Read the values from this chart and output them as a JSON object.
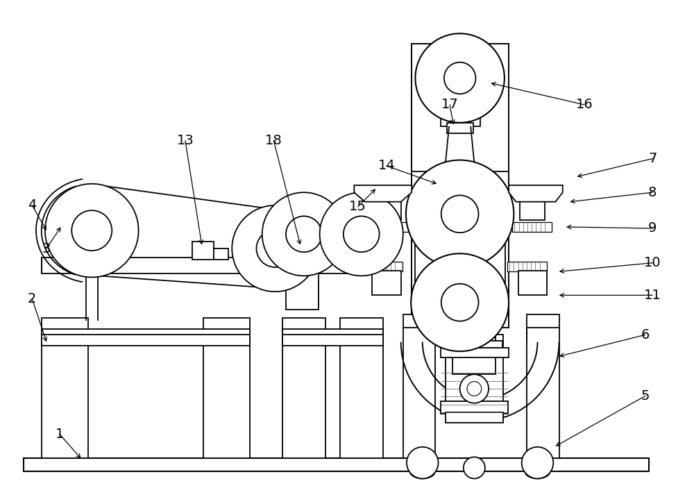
{
  "bg_color": "#ffffff",
  "line_color": "#000000",
  "lw": 1.3,
  "figsize": [
    10.0,
    7.16
  ],
  "dpi": 100,
  "label_fs": 14
}
